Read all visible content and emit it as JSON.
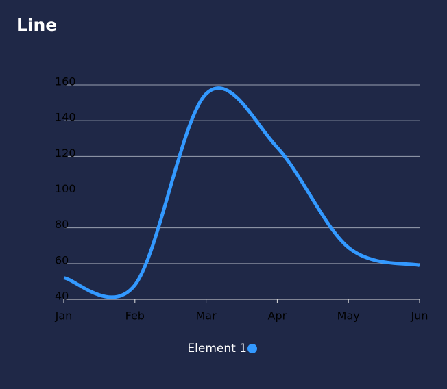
{
  "chart_data": {
    "type": "line",
    "title": "Line",
    "categories": [
      "Jan",
      "Feb",
      "Mar",
      "Apr",
      "May",
      "Jun"
    ],
    "series": [
      {
        "name": "Element 1",
        "color": "#3399ff",
        "values": [
          52,
          48,
          155,
          125,
          69,
          59
        ]
      }
    ],
    "ylim": [
      40,
      160
    ],
    "yticks": [
      40,
      60,
      80,
      100,
      120,
      140,
      160
    ],
    "grid": true,
    "legend": "bottom"
  }
}
